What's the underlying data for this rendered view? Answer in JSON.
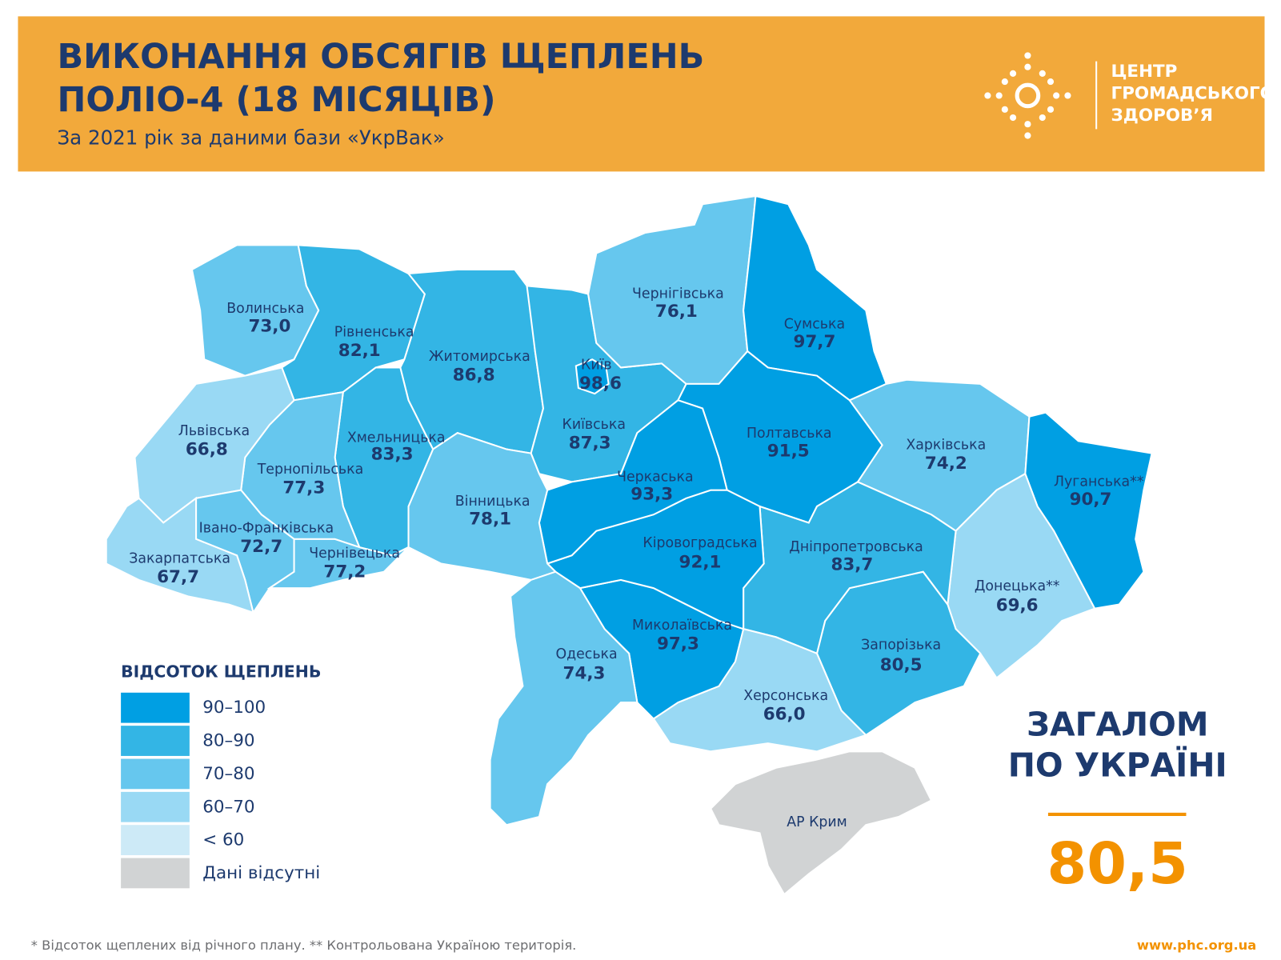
{
  "header": {
    "title_line1": "ВИКОНАННЯ ОБСЯГІВ ЩЕПЛЕНЬ",
    "title_line2": "ПОЛІО-4 (18 МІСЯЦІВ)",
    "subtitle": "За 2021 рік за даними бази «УкрВак»",
    "logo_lines": [
      "ЦЕНТР",
      "ГРОМАДСЬКОГО",
      "ЗДОРОВ’Я"
    ]
  },
  "regions": [
    {
      "name": "Волинська",
      "value": "73,0",
      "color": "#66c7ee"
    },
    {
      "name": "Рівненська",
      "value": "82,1",
      "color": "#33b5e5"
    },
    {
      "name": "Житомирська",
      "value": "86,8",
      "color": "#33b5e5"
    },
    {
      "name": "Київська",
      "value": "87,3",
      "color": "#33b5e5"
    },
    {
      "name": "Київ",
      "value": "98,6",
      "color": "#009fe3"
    },
    {
      "name": "Чернігівська",
      "value": "76,1",
      "color": "#66c7ee"
    },
    {
      "name": "Сумська",
      "value": "97,7",
      "color": "#009fe3"
    },
    {
      "name": "Полтавська",
      "value": "91,5",
      "color": "#009fe3"
    },
    {
      "name": "Харківська",
      "value": "74,2",
      "color": "#66c7ee"
    },
    {
      "name": "Луганська**",
      "value": "90,7",
      "color": "#009fe3"
    },
    {
      "name": "Донецька**",
      "value": "69,6",
      "color": "#99d9f4"
    },
    {
      "name": "Запорізька",
      "value": "80,5",
      "color": "#33b5e5"
    },
    {
      "name": "Дніпропетровська",
      "value": "83,7",
      "color": "#33b5e5"
    },
    {
      "name": "Херсонська",
      "value": "66,0",
      "color": "#99d9f4"
    },
    {
      "name": "Миколаївська",
      "value": "97,3",
      "color": "#009fe3"
    },
    {
      "name": "Кіровоградська",
      "value": "92,1",
      "color": "#009fe3"
    },
    {
      "name": "Черкаська",
      "value": "93,3",
      "color": "#009fe3"
    },
    {
      "name": "Вінницька",
      "value": "78,1",
      "color": "#66c7ee"
    },
    {
      "name": "Одеська",
      "value": "74,3",
      "color": "#66c7ee"
    },
    {
      "name": "Хмельницька",
      "value": "83,3",
      "color": "#33b5e5"
    },
    {
      "name": "Тернопільська",
      "value": "77,3",
      "color": "#66c7ee"
    },
    {
      "name": "Львівська",
      "value": "66,8",
      "color": "#99d9f4"
    },
    {
      "name": "Івано-Франківська",
      "value": "72,7",
      "color": "#66c7ee"
    },
    {
      "name": "Чернівецька",
      "value": "77,2",
      "color": "#66c7ee"
    },
    {
      "name": "Закарпатська",
      "value": "67,7",
      "color": "#99d9f4"
    }
  ],
  "crimea": {
    "name": "АР Крим",
    "color": "#d1d3d4"
  },
  "legend": {
    "title": "ВІДСОТОК ЩЕПЛЕНЬ",
    "items": [
      {
        "label": "90–100",
        "color": "#009fe3"
      },
      {
        "label": "80–90",
        "color": "#33b5e5"
      },
      {
        "label": "70–80",
        "color": "#66c7ee"
      },
      {
        "label": "60–70",
        "color": "#99d9f4"
      },
      {
        "label": "< 60",
        "color": "#cdeaf7"
      },
      {
        "label": "Дані відсутні",
        "color": "#d1d3d4"
      }
    ]
  },
  "total": {
    "title_line1": "ЗАГАЛОМ",
    "title_line2": "ПО УКРАЇНІ",
    "value": "80,5"
  },
  "footer": {
    "note": "* Відсоток щеплених від річного плану. ** Контрольована Україною територія.",
    "url": "www.phc.org.ua"
  }
}
